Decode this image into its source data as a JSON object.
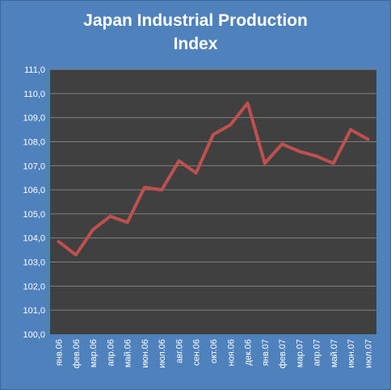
{
  "chart_data": {
    "type": "line",
    "title": "Japan Industrial Production\nIndex",
    "xlabel": "",
    "ylabel": "",
    "ylim": [
      100.0,
      111.0
    ],
    "ytick_step": 1.0,
    "yticks": [
      "100,0",
      "101,0",
      "102,0",
      "103,0",
      "104,0",
      "105,0",
      "106,0",
      "107,0",
      "108,0",
      "109,0",
      "110,0",
      "111,0"
    ],
    "grid": true,
    "legend": "none",
    "categories": [
      "янв.06",
      "фев.06",
      "мар.06",
      "апр.06",
      "май.06",
      "июн.06",
      "июл.06",
      "авг.06",
      "сен.06",
      "окт.06",
      "ноя.06",
      "дек.06",
      "янв.07",
      "фев.07",
      "мар.07",
      "апр.07",
      "май.07",
      "июн.07",
      "июл.07"
    ],
    "series": [
      {
        "values": [
          103.85,
          103.3,
          104.35,
          104.9,
          104.65,
          106.1,
          106.0,
          107.2,
          106.7,
          108.3,
          108.7,
          109.6,
          107.1,
          107.9,
          107.6,
          107.4,
          107.1,
          108.5,
          108.1
        ]
      }
    ],
    "colors": {
      "background": "#4f81bd",
      "plot_area": "#404040",
      "line": "#c0504d",
      "grid": "#808080",
      "text": "#ffffff"
    }
  }
}
